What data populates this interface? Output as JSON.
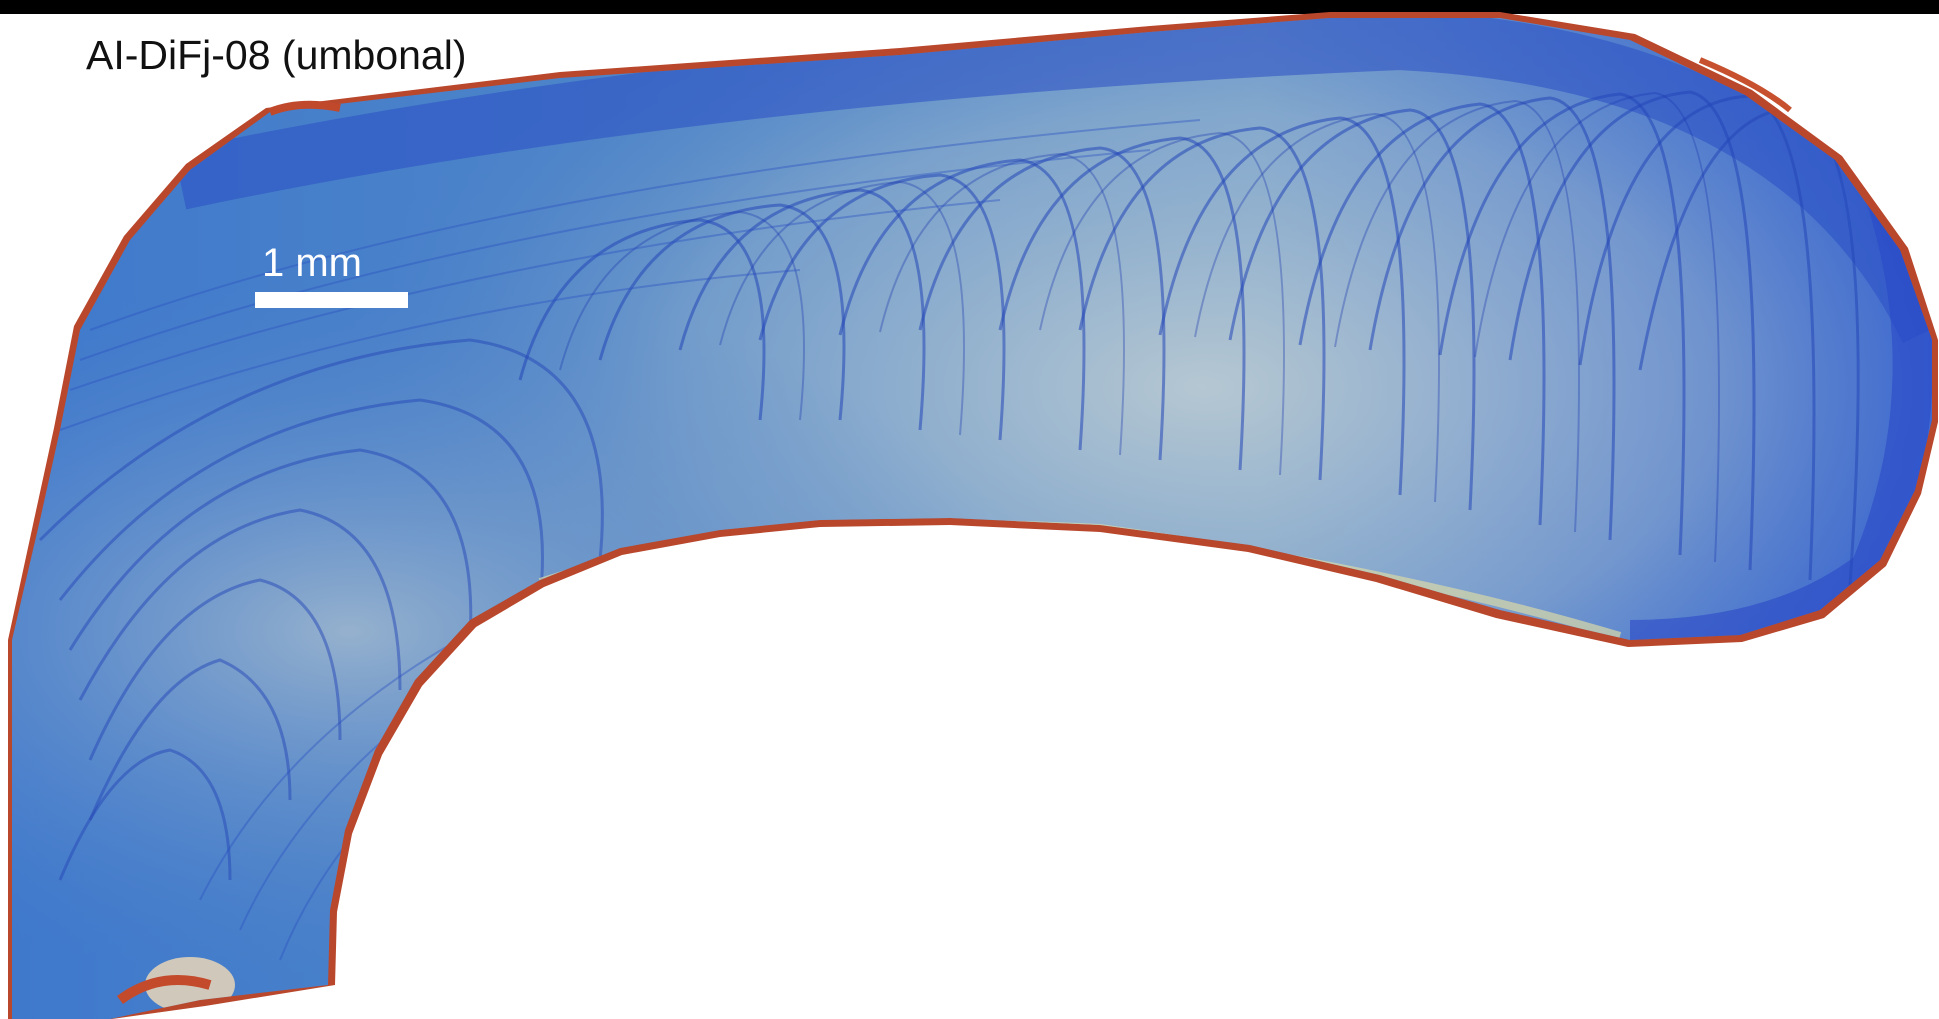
{
  "figure": {
    "specimen_label": "AI-DiFj-08 (umbonal)",
    "scale_bar_label": "1 mm",
    "colors": {
      "background": "#ffffff",
      "top_bar": "#000000",
      "shell_blue": "#2f5fd0",
      "shell_light": "#9fbbd6",
      "growth_line": "#1f3fb8",
      "rim_red": "#b8412a",
      "scale_bar": "#ffffff"
    }
  }
}
